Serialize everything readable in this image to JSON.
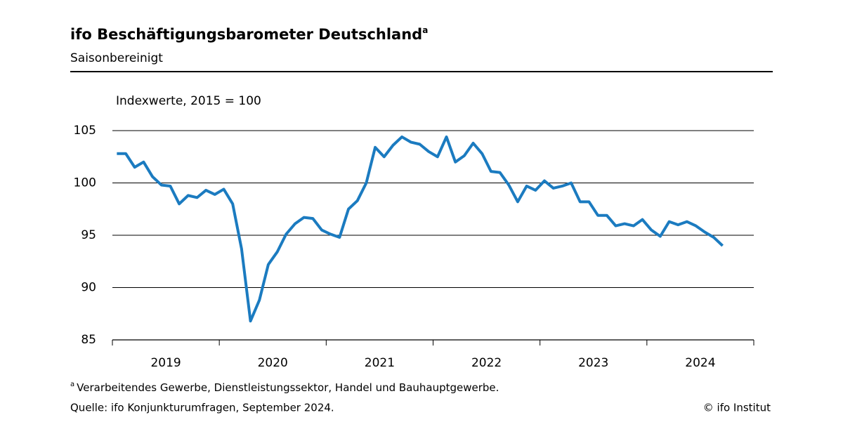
{
  "chart_data": {
    "type": "line",
    "title": "ifo Beschäftigungsbarometer Deutschland",
    "note_marker": "a",
    "subtitle": "Saisonbereinigt",
    "y_axis_label": "Indexwerte, 2015 = 100",
    "categories": [
      null,
      null,
      null,
      null,
      null,
      null,
      null,
      null,
      null,
      null,
      null,
      null,
      null,
      null,
      null,
      null,
      null,
      null,
      null,
      null,
      null,
      null,
      null,
      null,
      null,
      null,
      null,
      null,
      null,
      null,
      null,
      null,
      null,
      null,
      null,
      null,
      null,
      null,
      null,
      null,
      null,
      null,
      null,
      null,
      null,
      null,
      null,
      null,
      null,
      null,
      null,
      null,
      null,
      null,
      null,
      null,
      null,
      null,
      null,
      null,
      null,
      null,
      null,
      null,
      null,
      null,
      null,
      null,
      null
    ],
    "year_labels": [
      "2019",
      "2020",
      "2021",
      "2022",
      "2023",
      "2024"
    ],
    "series": [
      {
        "name": "ifo Beschäftigungsbarometer",
        "color": "#1b7bc0",
        "values": [
          102.8,
          102.8,
          101.5,
          102.0,
          100.6,
          99.8,
          99.7,
          98.0,
          98.8,
          98.6,
          99.3,
          98.9,
          99.4,
          98.0,
          93.7,
          86.8,
          88.8,
          92.2,
          93.4,
          95.1,
          96.1,
          96.7,
          96.6,
          95.5,
          95.1,
          94.8,
          97.5,
          98.3,
          100.0,
          103.4,
          102.5,
          103.6,
          104.4,
          103.9,
          103.7,
          103.0,
          102.5,
          104.4,
          102.0,
          102.6,
          103.8,
          102.8,
          101.1,
          101.0,
          99.8,
          98.2,
          99.7,
          99.3,
          100.2,
          99.5,
          99.7,
          100.0,
          98.2,
          98.2,
          96.9,
          96.9,
          95.9,
          96.1,
          95.9,
          96.5,
          95.5,
          94.9,
          96.3,
          96.0,
          96.3,
          95.9,
          95.3,
          94.8,
          94.0
        ]
      }
    ],
    "ylim": [
      85,
      105
    ],
    "yticks": [
      85,
      90,
      95,
      100,
      105
    ],
    "grid": true,
    "footnote": "Verarbeitendes  Gewerbe,  Dienstleistungssektor,  Handel und Bauhauptgewerbe.",
    "source": "Quelle:  ifo Konjunkturumfragen,  September  2024.",
    "copyright": "© ifo Institut"
  }
}
